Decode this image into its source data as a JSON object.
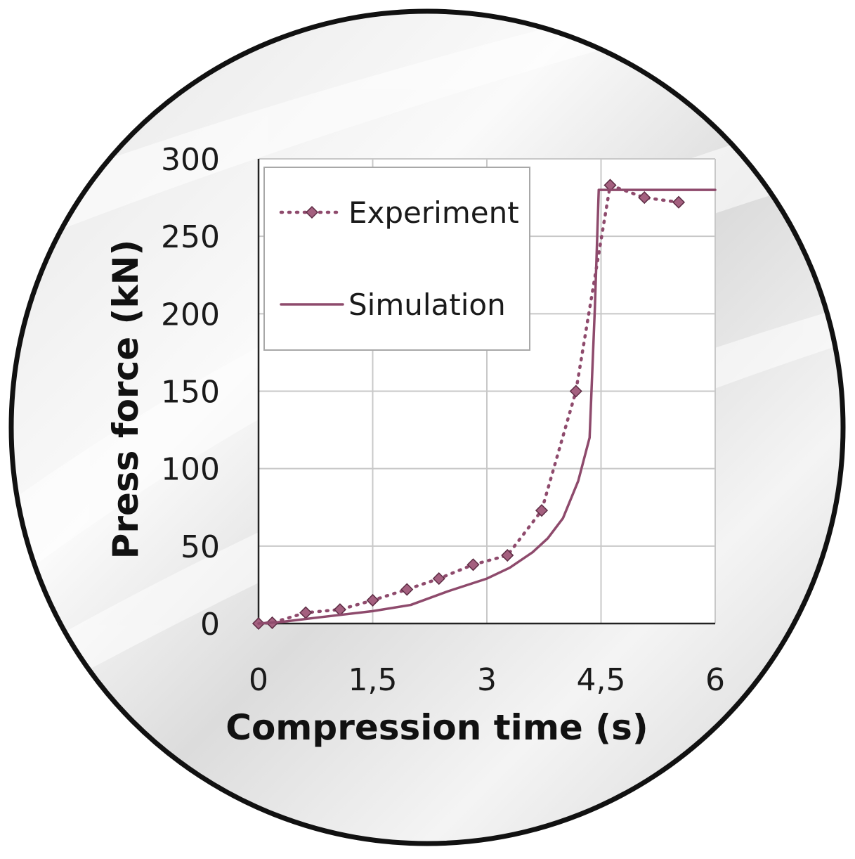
{
  "colors": {
    "series": "#8e4a6c",
    "marker_fill": "#a4607f",
    "grid": "#c8c8c8",
    "axis": "#222222",
    "badge_border": "#111111"
  },
  "chart_data": {
    "type": "line",
    "xlabel": "Compression time (s)",
    "ylabel": "Press force (kN)",
    "xlim": [
      0,
      6
    ],
    "ylim": [
      0,
      300
    ],
    "x_ticks": [
      0,
      1.5,
      3,
      4.5,
      6
    ],
    "x_tick_labels": [
      "0",
      "1,5",
      "3",
      "4,5",
      "6"
    ],
    "y_ticks": [
      0,
      50,
      100,
      150,
      200,
      250,
      300
    ],
    "y_tick_labels": [
      "0",
      "50",
      "100",
      "150",
      "200",
      "250",
      "300"
    ],
    "grid": true,
    "legend_position": "top-left",
    "series": [
      {
        "name": "Experiment",
        "style": "dotted-with-diamond-markers",
        "x": [
          0,
          0.18,
          0.62,
          1.07,
          1.5,
          1.95,
          2.37,
          2.82,
          3.27,
          3.72,
          4.17,
          4.62,
          5.07,
          5.52
        ],
        "y": [
          0,
          0.5,
          7,
          9,
          15,
          22,
          29,
          38,
          44,
          73,
          150,
          283,
          275,
          272
        ]
      },
      {
        "name": "Simulation",
        "style": "solid",
        "x": [
          0,
          0.3,
          0.8,
          1.5,
          2.0,
          2.5,
          3.0,
          3.3,
          3.6,
          3.8,
          4.0,
          4.2,
          4.35,
          4.42,
          4.47,
          6.0
        ],
        "y": [
          0,
          1,
          4,
          8,
          12,
          21,
          29,
          36,
          46,
          55,
          68,
          92,
          120,
          205,
          280,
          280
        ]
      }
    ]
  }
}
